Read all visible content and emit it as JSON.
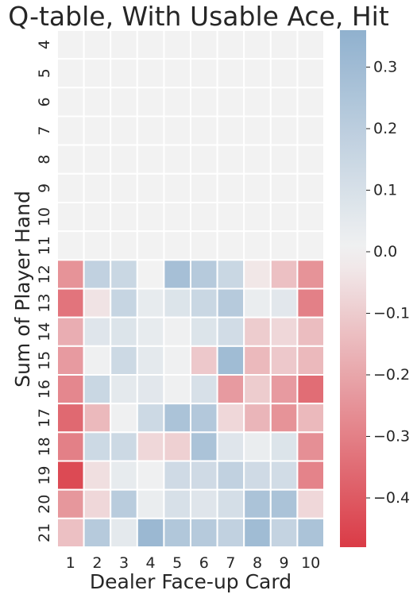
{
  "chart_data": {
    "type": "heatmap",
    "title": "Q-table, With Usable Ace, Hit",
    "xlabel": "Dealer Face-up Card",
    "ylabel": "Sum of Player Hand",
    "x_categories": [
      "1",
      "2",
      "3",
      "4",
      "5",
      "6",
      "7",
      "8",
      "9",
      "10"
    ],
    "y_categories": [
      "4",
      "5",
      "6",
      "7",
      "8",
      "9",
      "10",
      "11",
      "12",
      "13",
      "14",
      "15",
      "16",
      "17",
      "18",
      "19",
      "20",
      "21"
    ],
    "values": [
      [
        0,
        0,
        0,
        0,
        0,
        0,
        0,
        0,
        0,
        0
      ],
      [
        0,
        0,
        0,
        0,
        0,
        0,
        0,
        0,
        0,
        0
      ],
      [
        0,
        0,
        0,
        0,
        0,
        0,
        0,
        0,
        0,
        0
      ],
      [
        0,
        0,
        0,
        0,
        0,
        0,
        0,
        0,
        0,
        0
      ],
      [
        0,
        0,
        0,
        0,
        0,
        0,
        0,
        0,
        0,
        0
      ],
      [
        0,
        0,
        0,
        0,
        0,
        0,
        0,
        0,
        0,
        0
      ],
      [
        0,
        0,
        0,
        0,
        0,
        0,
        0,
        0,
        0,
        0
      ],
      [
        0,
        0,
        0,
        0,
        0,
        0,
        0,
        0,
        0,
        0
      ],
      [
        -0.25,
        0.18,
        0.15,
        0.0,
        0.28,
        0.22,
        0.15,
        -0.03,
        -0.13,
        -0.25
      ],
      [
        -0.33,
        -0.04,
        0.16,
        0.04,
        0.08,
        0.15,
        0.22,
        0.03,
        0.06,
        -0.3
      ],
      [
        -0.18,
        0.07,
        0.08,
        0.04,
        0.01,
        0.08,
        0.12,
        -0.1,
        -0.07,
        -0.14
      ],
      [
        -0.23,
        0.01,
        0.14,
        0.05,
        0.01,
        -0.11,
        0.3,
        -0.15,
        -0.11,
        -0.15
      ],
      [
        -0.28,
        0.15,
        0.05,
        0.06,
        0.01,
        0.1,
        -0.23,
        -0.1,
        -0.23,
        -0.35
      ],
      [
        -0.36,
        -0.15,
        0.01,
        0.14,
        0.26,
        0.23,
        -0.07,
        -0.16,
        -0.25,
        -0.15
      ],
      [
        -0.3,
        0.14,
        0.14,
        -0.07,
        -0.09,
        0.26,
        0.07,
        0.03,
        0.08,
        -0.26
      ],
      [
        -0.44,
        -0.05,
        0.04,
        0.01,
        0.13,
        0.13,
        0.18,
        0.13,
        0.12,
        -0.29
      ],
      [
        -0.24,
        -0.07,
        0.21,
        0.03,
        0.1,
        0.07,
        0.11,
        0.26,
        0.26,
        -0.07
      ],
      [
        -0.13,
        0.22,
        0.05,
        0.32,
        0.24,
        0.22,
        0.18,
        0.3,
        0.17,
        0.26
      ]
    ],
    "colorbar": {
      "vmin": -0.48,
      "vmax": 0.36,
      "ticks": [
        -0.4,
        -0.3,
        -0.2,
        -0.1,
        0.0,
        0.1,
        0.2,
        0.3
      ],
      "tick_labels": [
        "−0.4",
        "−0.3",
        "−0.2",
        "−0.1",
        "0.0",
        "0.1",
        "0.2",
        "0.3"
      ]
    },
    "colors": {
      "negative": "#da3b46",
      "center": "#f2f2f2",
      "positive": "#6f9bc2"
    },
    "grid": false,
    "legend": "colorbar-right"
  }
}
